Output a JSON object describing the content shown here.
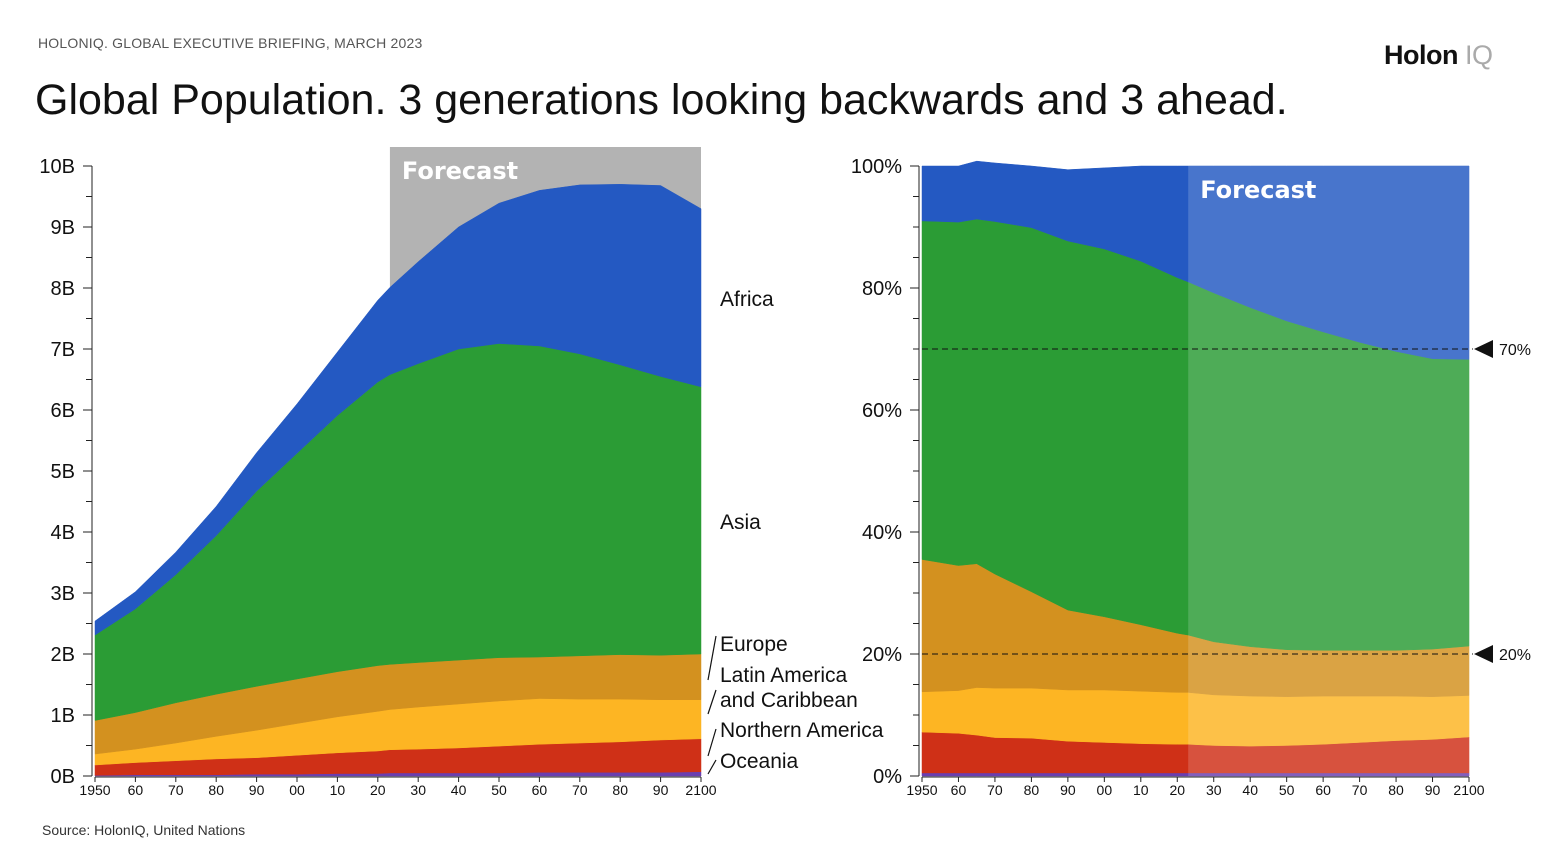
{
  "header": {
    "kicker": "HOLONIQ. GLOBAL EXECUTIVE BRIEFING, MARCH 2023",
    "title": "Global Population. 3 generations looking backwards and 3 ahead.",
    "logo_main": "Holon",
    "logo_suffix": "IQ"
  },
  "footer": {
    "source": "Source: HolonIQ, United Nations"
  },
  "colors": {
    "Africa": "#2459c2",
    "Asia": "#2b9c35",
    "Europe": "#d3911f",
    "Latin America and Caribbean": "#fdb523",
    "Northern America": "#cf3017",
    "Oceania": "#6a3fb0",
    "forecast_band": "#b3b3b3"
  },
  "chart_data": [
    {
      "type": "area",
      "stacked": true,
      "x": [
        1950,
        1960,
        1970,
        1980,
        1990,
        2000,
        2010,
        2020,
        2023,
        2030,
        2040,
        2050,
        2060,
        2070,
        2080,
        2090,
        2100
      ],
      "x_tick_values": [
        1950,
        1960,
        1970,
        1980,
        1990,
        2000,
        2010,
        2020,
        2030,
        2040,
        2050,
        2060,
        2070,
        2080,
        2090,
        2100
      ],
      "x_tick_labels": [
        "1950",
        "60",
        "70",
        "80",
        "90",
        "00",
        "10",
        "20",
        "30",
        "40",
        "50",
        "60",
        "70",
        "80",
        "90",
        "2100"
      ],
      "y_tick_values": [
        0,
        1,
        2,
        3,
        4,
        5,
        6,
        7,
        8,
        9,
        10
      ],
      "y_tick_labels": [
        "0B",
        "1B",
        "2B",
        "3B",
        "4B",
        "5B",
        "6B",
        "7B",
        "8B",
        "9B",
        "10B"
      ],
      "ylim": [
        0,
        10
      ],
      "forecast_start": 2023,
      "forecast_label": "Forecast",
      "series": [
        {
          "name": "Oceania",
          "values": [
            0.01,
            0.02,
            0.02,
            0.02,
            0.03,
            0.03,
            0.04,
            0.04,
            0.05,
            0.05,
            0.05,
            0.05,
            0.06,
            0.06,
            0.06,
            0.06,
            0.07
          ]
        },
        {
          "name": "Northern America",
          "values": [
            0.17,
            0.2,
            0.23,
            0.26,
            0.27,
            0.31,
            0.34,
            0.37,
            0.38,
            0.39,
            0.41,
            0.44,
            0.46,
            0.48,
            0.5,
            0.53,
            0.54
          ]
        },
        {
          "name": "Latin America and Caribbean",
          "values": [
            0.18,
            0.22,
            0.29,
            0.37,
            0.45,
            0.52,
            0.59,
            0.65,
            0.66,
            0.69,
            0.72,
            0.74,
            0.75,
            0.72,
            0.7,
            0.66,
            0.64
          ]
        },
        {
          "name": "Europe",
          "values": [
            0.55,
            0.6,
            0.66,
            0.69,
            0.72,
            0.73,
            0.74,
            0.75,
            0.74,
            0.73,
            0.72,
            0.71,
            0.68,
            0.71,
            0.73,
            0.73,
            0.75
          ]
        },
        {
          "name": "Asia",
          "values": [
            1.4,
            1.7,
            2.1,
            2.6,
            3.2,
            3.7,
            4.2,
            4.65,
            4.75,
            4.9,
            5.1,
            5.15,
            5.1,
            4.95,
            4.75,
            4.57,
            4.38
          ]
        },
        {
          "name": "Africa",
          "values": [
            0.23,
            0.28,
            0.37,
            0.48,
            0.63,
            0.81,
            1.04,
            1.34,
            1.43,
            1.67,
            2.0,
            2.3,
            2.55,
            2.77,
            2.96,
            3.13,
            2.92
          ]
        }
      ],
      "labels": [
        "Africa",
        "Asia",
        "Europe",
        "Latin America\nand Caribbean",
        "Northern America",
        "Oceania"
      ]
    },
    {
      "type": "area",
      "stacked": true,
      "normalized": true,
      "x": [
        1950,
        1960,
        1965,
        1970,
        1980,
        1990,
        2000,
        2010,
        2020,
        2023,
        2030,
        2040,
        2050,
        2060,
        2070,
        2080,
        2090,
        2100
      ],
      "x_tick_values": [
        1950,
        1960,
        1970,
        1980,
        1990,
        2000,
        2010,
        2020,
        2030,
        2040,
        2050,
        2060,
        2070,
        2080,
        2090,
        2100
      ],
      "x_tick_labels": [
        "1950",
        "60",
        "70",
        "80",
        "90",
        "00",
        "10",
        "20",
        "30",
        "40",
        "50",
        "60",
        "70",
        "80",
        "90",
        "2100"
      ],
      "y_tick_values": [
        0,
        20,
        40,
        60,
        80,
        100
      ],
      "y_tick_labels": [
        "0%",
        "20%",
        "40%",
        "60%",
        "80%",
        "100%"
      ],
      "ylim": [
        0,
        100
      ],
      "forecast_start": 2023,
      "forecast_label": "Forecast",
      "reference_lines": [
        {
          "value": 70,
          "label": "70%"
        },
        {
          "value": 20,
          "label": "20%"
        }
      ],
      "series": [
        {
          "name": "Oceania",
          "values": [
            0.5,
            0.5,
            0.5,
            0.5,
            0.5,
            0.5,
            0.5,
            0.5,
            0.5,
            0.5,
            0.5,
            0.5,
            0.5,
            0.5,
            0.5,
            0.5,
            0.5,
            0.5
          ]
        },
        {
          "name": "Northern America",
          "values": [
            6.7,
            6.5,
            6.2,
            5.8,
            5.7,
            5.2,
            5.0,
            4.8,
            4.7,
            4.7,
            4.5,
            4.4,
            4.5,
            4.7,
            5.0,
            5.3,
            5.5,
            5.9
          ]
        },
        {
          "name": "Latin America and Caribbean",
          "values": [
            6.6,
            7.0,
            7.8,
            8.1,
            8.2,
            8.4,
            8.6,
            8.6,
            8.5,
            8.5,
            8.3,
            8.2,
            8.0,
            7.9,
            7.6,
            7.3,
            7.0,
            6.8
          ]
        },
        {
          "name": "Europe",
          "values": [
            21.7,
            20.5,
            20.3,
            18.7,
            15.8,
            13.1,
            12.0,
            10.9,
            9.7,
            9.4,
            8.7,
            8.1,
            7.7,
            7.5,
            7.5,
            7.5,
            7.8,
            8.1
          ]
        },
        {
          "name": "Asia",
          "values": [
            55.5,
            56.3,
            56.5,
            57.8,
            59.7,
            60.5,
            60.3,
            59.6,
            58.3,
            57.9,
            57.2,
            55.6,
            53.9,
            52.2,
            50.5,
            49.0,
            47.6,
            47.0
          ]
        },
        {
          "name": "Africa",
          "values": [
            9.0,
            9.2,
            9.5,
            9.6,
            10.1,
            11.7,
            13.3,
            15.6,
            18.3,
            19.0,
            20.8,
            23.2,
            25.4,
            27.2,
            28.9,
            30.4,
            31.6,
            31.7
          ]
        }
      ]
    }
  ]
}
